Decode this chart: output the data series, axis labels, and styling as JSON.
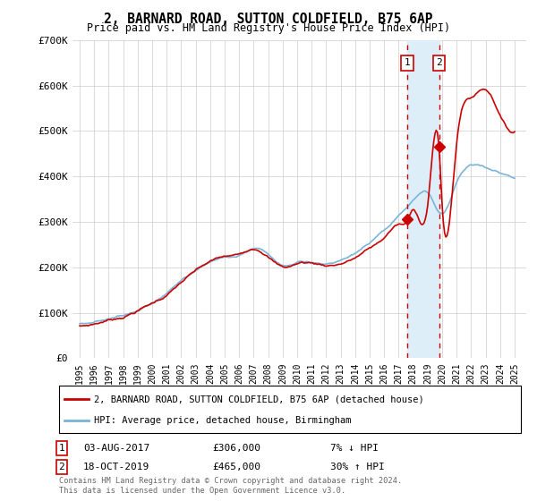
{
  "title": "2, BARNARD ROAD, SUTTON COLDFIELD, B75 6AP",
  "subtitle": "Price paid vs. HM Land Registry's House Price Index (HPI)",
  "legend_line1": "2, BARNARD ROAD, SUTTON COLDFIELD, B75 6AP (detached house)",
  "legend_line2": "HPI: Average price, detached house, Birmingham",
  "sale1_label": "1",
  "sale1_date": "03-AUG-2017",
  "sale1_price": "£306,000",
  "sale1_hpi": "7% ↓ HPI",
  "sale1_year": 2017.58,
  "sale1_value": 306000,
  "sale2_label": "2",
  "sale2_date": "18-OCT-2019",
  "sale2_price": "£465,000",
  "sale2_hpi": "30% ↑ HPI",
  "sale2_year": 2019.79,
  "sale2_value": 465000,
  "footnote": "Contains HM Land Registry data © Crown copyright and database right 2024.\nThis data is licensed under the Open Government Licence v3.0.",
  "hpi_color": "#7ab4d8",
  "property_color": "#cc0000",
  "marker_color": "#cc0000",
  "vline_color": "#cc0000",
  "highlight_color": "#ddeef8",
  "ylim": [
    0,
    700000
  ],
  "yticks": [
    0,
    100000,
    200000,
    300000,
    400000,
    500000,
    600000,
    700000
  ],
  "ytick_labels": [
    "£0",
    "£100K",
    "£200K",
    "£300K",
    "£400K",
    "£500K",
    "£600K",
    "£700K"
  ],
  "xtick_years": [
    1995,
    1996,
    1997,
    1998,
    1999,
    2000,
    2001,
    2002,
    2003,
    2004,
    2005,
    2006,
    2007,
    2008,
    2009,
    2010,
    2011,
    2012,
    2013,
    2014,
    2015,
    2016,
    2017,
    2018,
    2019,
    2020,
    2021,
    2022,
    2023,
    2024,
    2025
  ],
  "background_color": "#ffffff",
  "grid_color": "#cccccc"
}
